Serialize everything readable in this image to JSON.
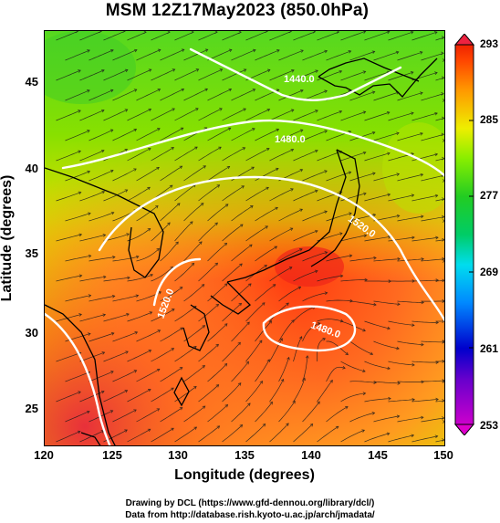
{
  "title": "MSM 12Z17May2023 (850.0hPa)",
  "axes": {
    "xlabel": "Longitude (degrees)",
    "ylabel": "Latitude  (degrees)",
    "x_ticks": [
      "120",
      "125",
      "130",
      "135",
      "140",
      "145",
      "150"
    ],
    "y_ticks": [
      "45",
      "40",
      "35",
      "30",
      "25"
    ],
    "x_range": [
      120,
      150
    ],
    "y_range": [
      22.4,
      47.6
    ]
  },
  "colorbar": {
    "ticks": [
      "293",
      "285",
      "277",
      "269",
      "261",
      "253"
    ],
    "range": [
      253,
      293
    ],
    "colors": [
      "#cc00cc",
      "#0000cc",
      "#0088ff",
      "#00ddee",
      "#22cc22",
      "#88ee00",
      "#eeee00",
      "#ff9900",
      "#ff4400",
      "#ee2200"
    ]
  },
  "contour_labels": [
    "1440.0",
    "1480.0",
    "1520.0",
    "1520.0",
    "1480.0"
  ],
  "credits": {
    "line1": "Drawing by DCL (https://www.gfd-dennou.org/library/dcl/)",
    "line2": "Data from http://database.rish.kyoto-u.ac.jp/arch/jmadata/"
  }
}
